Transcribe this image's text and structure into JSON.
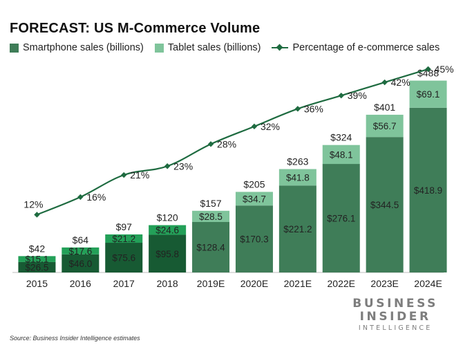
{
  "chart_data": {
    "type": "bar",
    "title": "FORECAST: US M-Commerce Volume",
    "categories": [
      "2015",
      "2016",
      "2017",
      "2018",
      "2019E",
      "2020E",
      "2021E",
      "2022E",
      "2023E",
      "2024E"
    ],
    "series": [
      {
        "name": "Smartphone sales (billions)",
        "values": [
          26.5,
          46.0,
          75.6,
          95.8,
          128.4,
          170.3,
          221.2,
          276.1,
          344.5,
          418.9
        ],
        "labels": [
          "$26.5",
          "$46.0",
          "$75.6",
          "$95.8",
          "$128.4",
          "$170.3",
          "$221.2",
          "$276.1",
          "$344.5",
          "$418.9"
        ]
      },
      {
        "name": "Tablet sales (billions)",
        "values": [
          15.1,
          17.6,
          21.2,
          24.6,
          28.5,
          34.7,
          41.8,
          48.1,
          56.7,
          69.1
        ],
        "labels": [
          "$15.1",
          "$17.6",
          "$21.2",
          "$24.6",
          "$28.5",
          "$34.7",
          "$41.8",
          "$48.1",
          "$56.7",
          "$69.1"
        ]
      },
      {
        "name": "Percentage of e-commerce sales",
        "type": "line",
        "values": [
          12,
          16,
          21,
          23,
          28,
          32,
          36,
          39,
          42,
          45
        ],
        "labels": [
          "12%",
          "16%",
          "21%",
          "23%",
          "28%",
          "32%",
          "36%",
          "39%",
          "42%",
          "45%"
        ]
      }
    ],
    "totals": [
      42,
      64,
      97,
      120,
      157,
      205,
      263,
      324,
      401,
      488
    ],
    "total_labels": [
      "$42",
      "$64",
      "$97",
      "$120",
      "$157",
      "$205",
      "$263",
      "$324",
      "$401",
      "$488"
    ],
    "ylim": [
      0,
      500
    ],
    "y2lim": [
      0,
      50
    ],
    "grid": false,
    "legend": "top",
    "colors": {
      "smartphone_actual": "#175a33",
      "tablet_actual": "#23a058",
      "smartphone_forecast": "#3f7d58",
      "tablet_forecast": "#7fc49b",
      "line": "#1e6b40"
    }
  },
  "source": "Source: Business Insider Intelligence estimates",
  "brand": {
    "line1": "BUSINESS",
    "line2": "INSIDER",
    "line3": "INTELLIGENCE"
  }
}
